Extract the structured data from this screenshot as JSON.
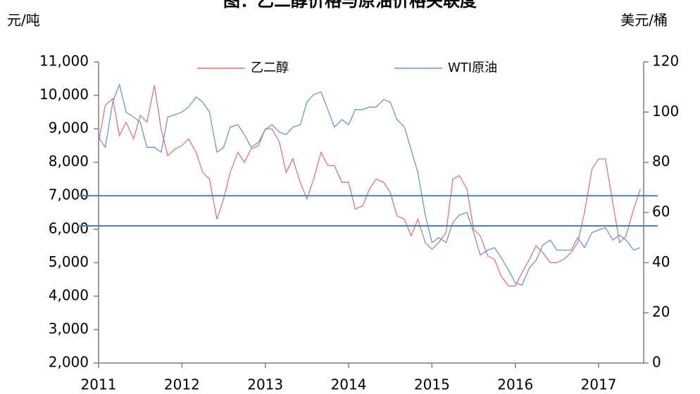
{
  "chart_data": {
    "type": "line",
    "title": "图：乙二醇价格与原油价格关联度",
    "y_label": "元/吨",
    "y2_label": "美元/桶",
    "xlim": [
      2011,
      2017.54
    ],
    "xticks": [
      2011,
      2012,
      2013,
      2014,
      2015,
      2016,
      2017
    ],
    "ylim": [
      2000,
      11000
    ],
    "yticks": [
      {
        "value": 2000,
        "label": "2,000"
      },
      {
        "value": 3000,
        "label": "3,000"
      },
      {
        "value": 4000,
        "label": "4,000"
      },
      {
        "value": 5000,
        "label": "5,000"
      },
      {
        "value": 6000,
        "label": "6,000"
      },
      {
        "value": 7000,
        "label": "7,000"
      },
      {
        "value": 8000,
        "label": "8,000"
      },
      {
        "value": 9000,
        "label": "9,000"
      },
      {
        "value": 10000,
        "label": "10,000"
      },
      {
        "value": 11000,
        "label": "11,000"
      }
    ],
    "y2lim": [
      0,
      120
    ],
    "y2ticks": [
      0,
      20,
      40,
      60,
      80,
      100,
      120
    ],
    "hlines": [
      7000,
      6100
    ],
    "hline_color": "#4a7ebb",
    "x": [
      2011,
      2011.08,
      2011.17,
      2011.25,
      2011.33,
      2011.42,
      2011.5,
      2011.58,
      2011.67,
      2011.75,
      2011.83,
      2011.92,
      2012,
      2012.08,
      2012.17,
      2012.25,
      2012.33,
      2012.42,
      2012.5,
      2012.58,
      2012.67,
      2012.75,
      2012.83,
      2012.92,
      2013,
      2013.08,
      2013.17,
      2013.25,
      2013.33,
      2013.42,
      2013.5,
      2013.58,
      2013.67,
      2013.75,
      2013.83,
      2013.92,
      2014,
      2014.08,
      2014.17,
      2014.25,
      2014.33,
      2014.42,
      2014.5,
      2014.58,
      2014.67,
      2014.75,
      2014.83,
      2014.92,
      2015,
      2015.08,
      2015.17,
      2015.25,
      2015.33,
      2015.42,
      2015.5,
      2015.58,
      2015.67,
      2015.75,
      2015.83,
      2015.92,
      2016,
      2016.08,
      2016.17,
      2016.25,
      2016.33,
      2016.42,
      2016.5,
      2016.58,
      2016.67,
      2016.75,
      2016.83,
      2016.92,
      2017,
      2017.08,
      2017.17,
      2017.25,
      2017.33,
      2017.42,
      2017.5
    ],
    "series": [
      {
        "name": "乙二醇",
        "color": "#d9757a",
        "values": [
          8600,
          9700,
          9900,
          8800,
          9200,
          8700,
          9400,
          9200,
          10300,
          9000,
          8200,
          8400,
          8500,
          8700,
          8300,
          7700,
          7500,
          6300,
          6900,
          7700,
          8300,
          8000,
          8400,
          8500,
          9000,
          9000,
          8600,
          7700,
          8100,
          7400,
          6900,
          7500,
          8300,
          7900,
          7900,
          7400,
          7400,
          6600,
          6700,
          7200,
          7500,
          7400,
          7100,
          6400,
          6300,
          5800,
          6300,
          5600,
          5400,
          5600,
          5900,
          7500,
          7600,
          7200,
          6000,
          5800,
          5200,
          5100,
          4600,
          4300,
          4300,
          4700,
          5100,
          5500,
          5300,
          5000,
          5000,
          5100,
          5300,
          5600,
          6500,
          7800,
          8100,
          8100,
          6800,
          5600,
          5800,
          6600,
          7200
        ]
      },
      {
        "name": "WTI原油",
        "color": "#6f93cc",
        "axis": "y2",
        "values": [
          90,
          86,
          104,
          111,
          100,
          98,
          96,
          86,
          86,
          84,
          98,
          99,
          100,
          102,
          106,
          104,
          100,
          84,
          86,
          94,
          95,
          91,
          86,
          88,
          93,
          95,
          92,
          91,
          94,
          95,
          104,
          107,
          108,
          101,
          94,
          97,
          95,
          101,
          101,
          102,
          102,
          105,
          104,
          97,
          94,
          85,
          76,
          59,
          48,
          50,
          48,
          56,
          59,
          60,
          52,
          43,
          45,
          46,
          42,
          37,
          32,
          31,
          38,
          41,
          47,
          49,
          45,
          45,
          45,
          50,
          46,
          52,
          53,
          54,
          49,
          51,
          49,
          45,
          46
        ]
      }
    ]
  }
}
